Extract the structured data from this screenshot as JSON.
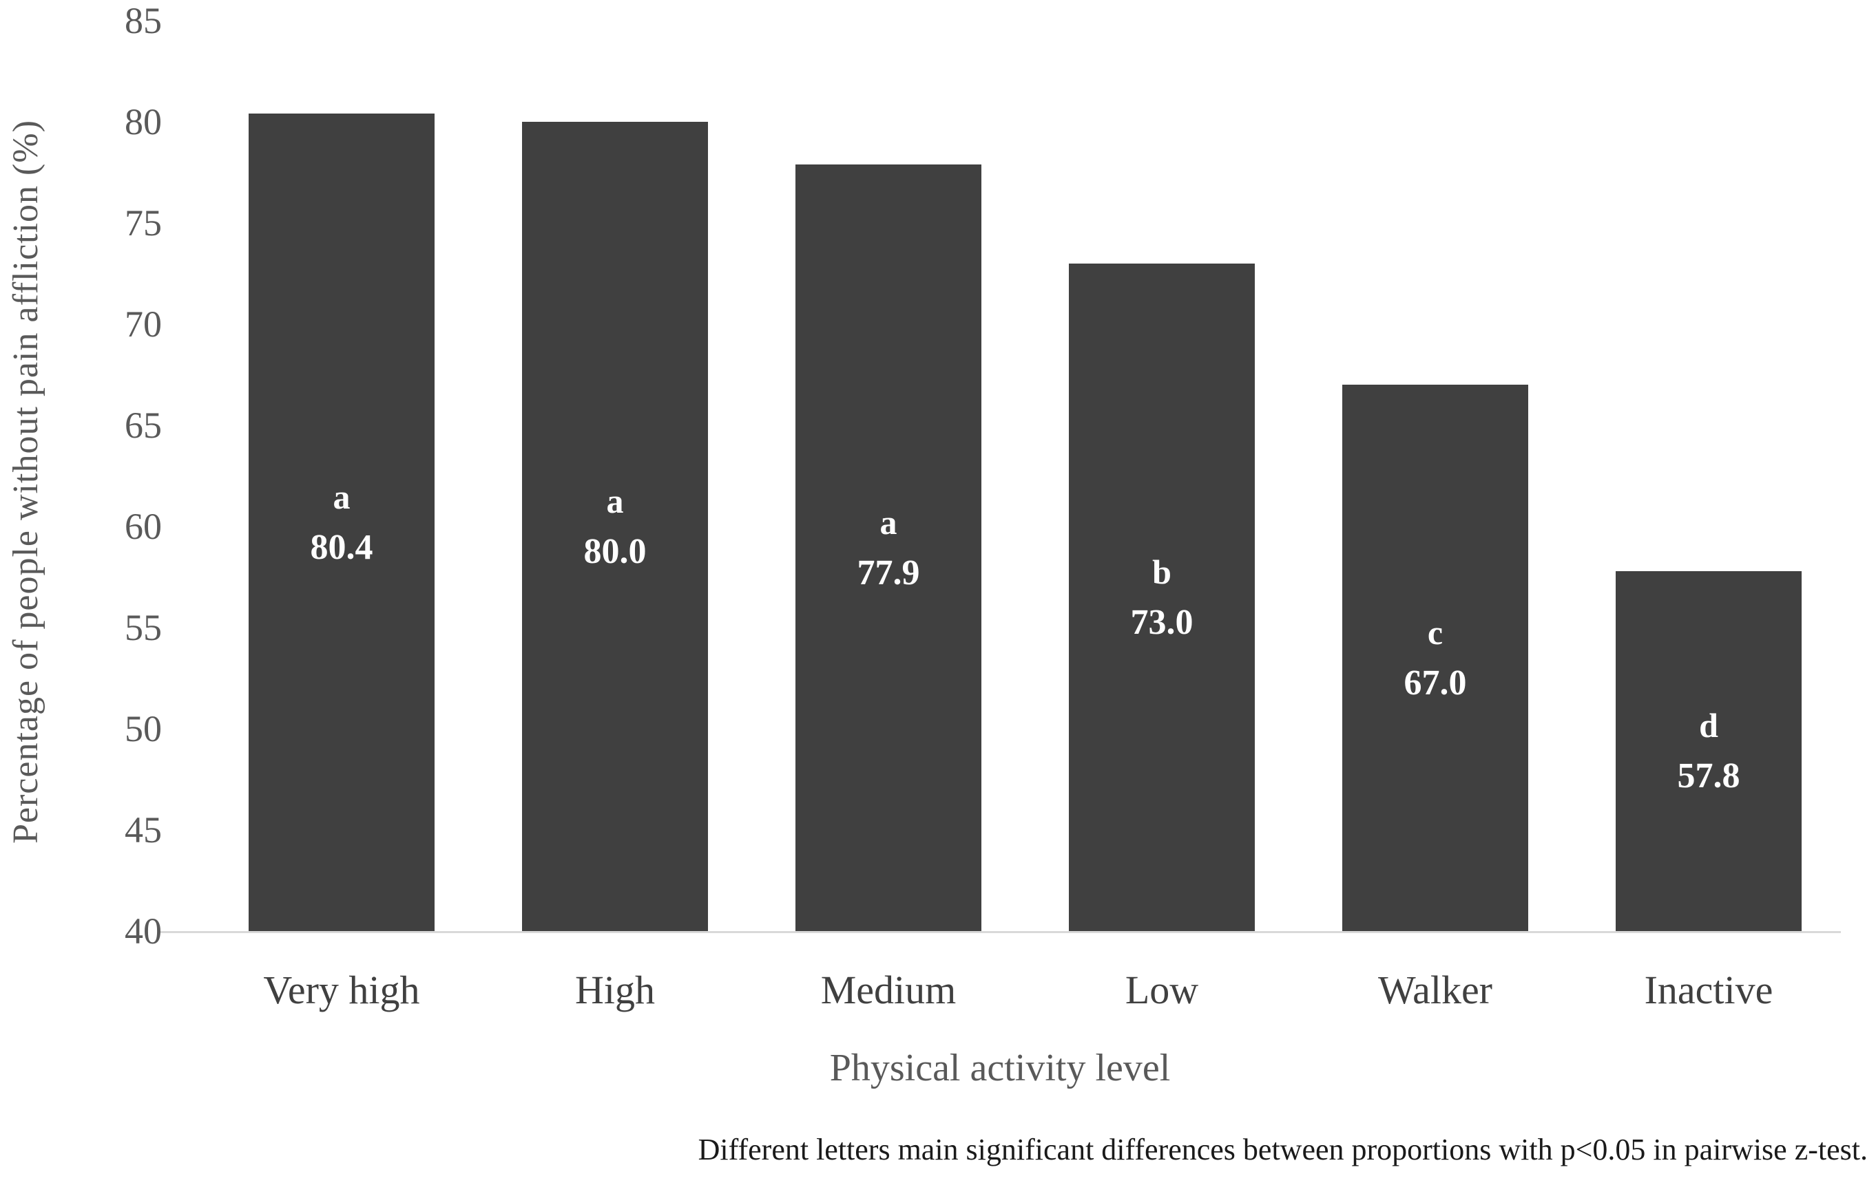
{
  "chart_data": {
    "type": "bar",
    "categories": [
      "Very high",
      "High",
      "Medium",
      "Low",
      "Walker",
      "Inactive"
    ],
    "values": [
      80.4,
      80.0,
      77.9,
      73.0,
      67.0,
      57.8
    ],
    "value_labels": [
      "80.4",
      "80.0",
      "77.9",
      "73.0",
      "67.0",
      "57.8"
    ],
    "significance_letters": [
      "a",
      "a",
      "a",
      "b",
      "c",
      "d"
    ],
    "xlabel": "Physical activity level",
    "ylabel": "Percentage of people without pain affliction (%)",
    "ylim": [
      40,
      85
    ],
    "yticks": [
      85,
      80,
      75,
      70,
      65,
      60,
      55,
      50,
      45,
      40
    ],
    "grid": false,
    "legend": "none",
    "bar_color": "#404040",
    "bar_label_color": "#ffffff",
    "axis_line_color": "#d9d9d9",
    "footnote": "Different letters main significant differences between proportions with p<0.05 in pairwise z-test."
  }
}
